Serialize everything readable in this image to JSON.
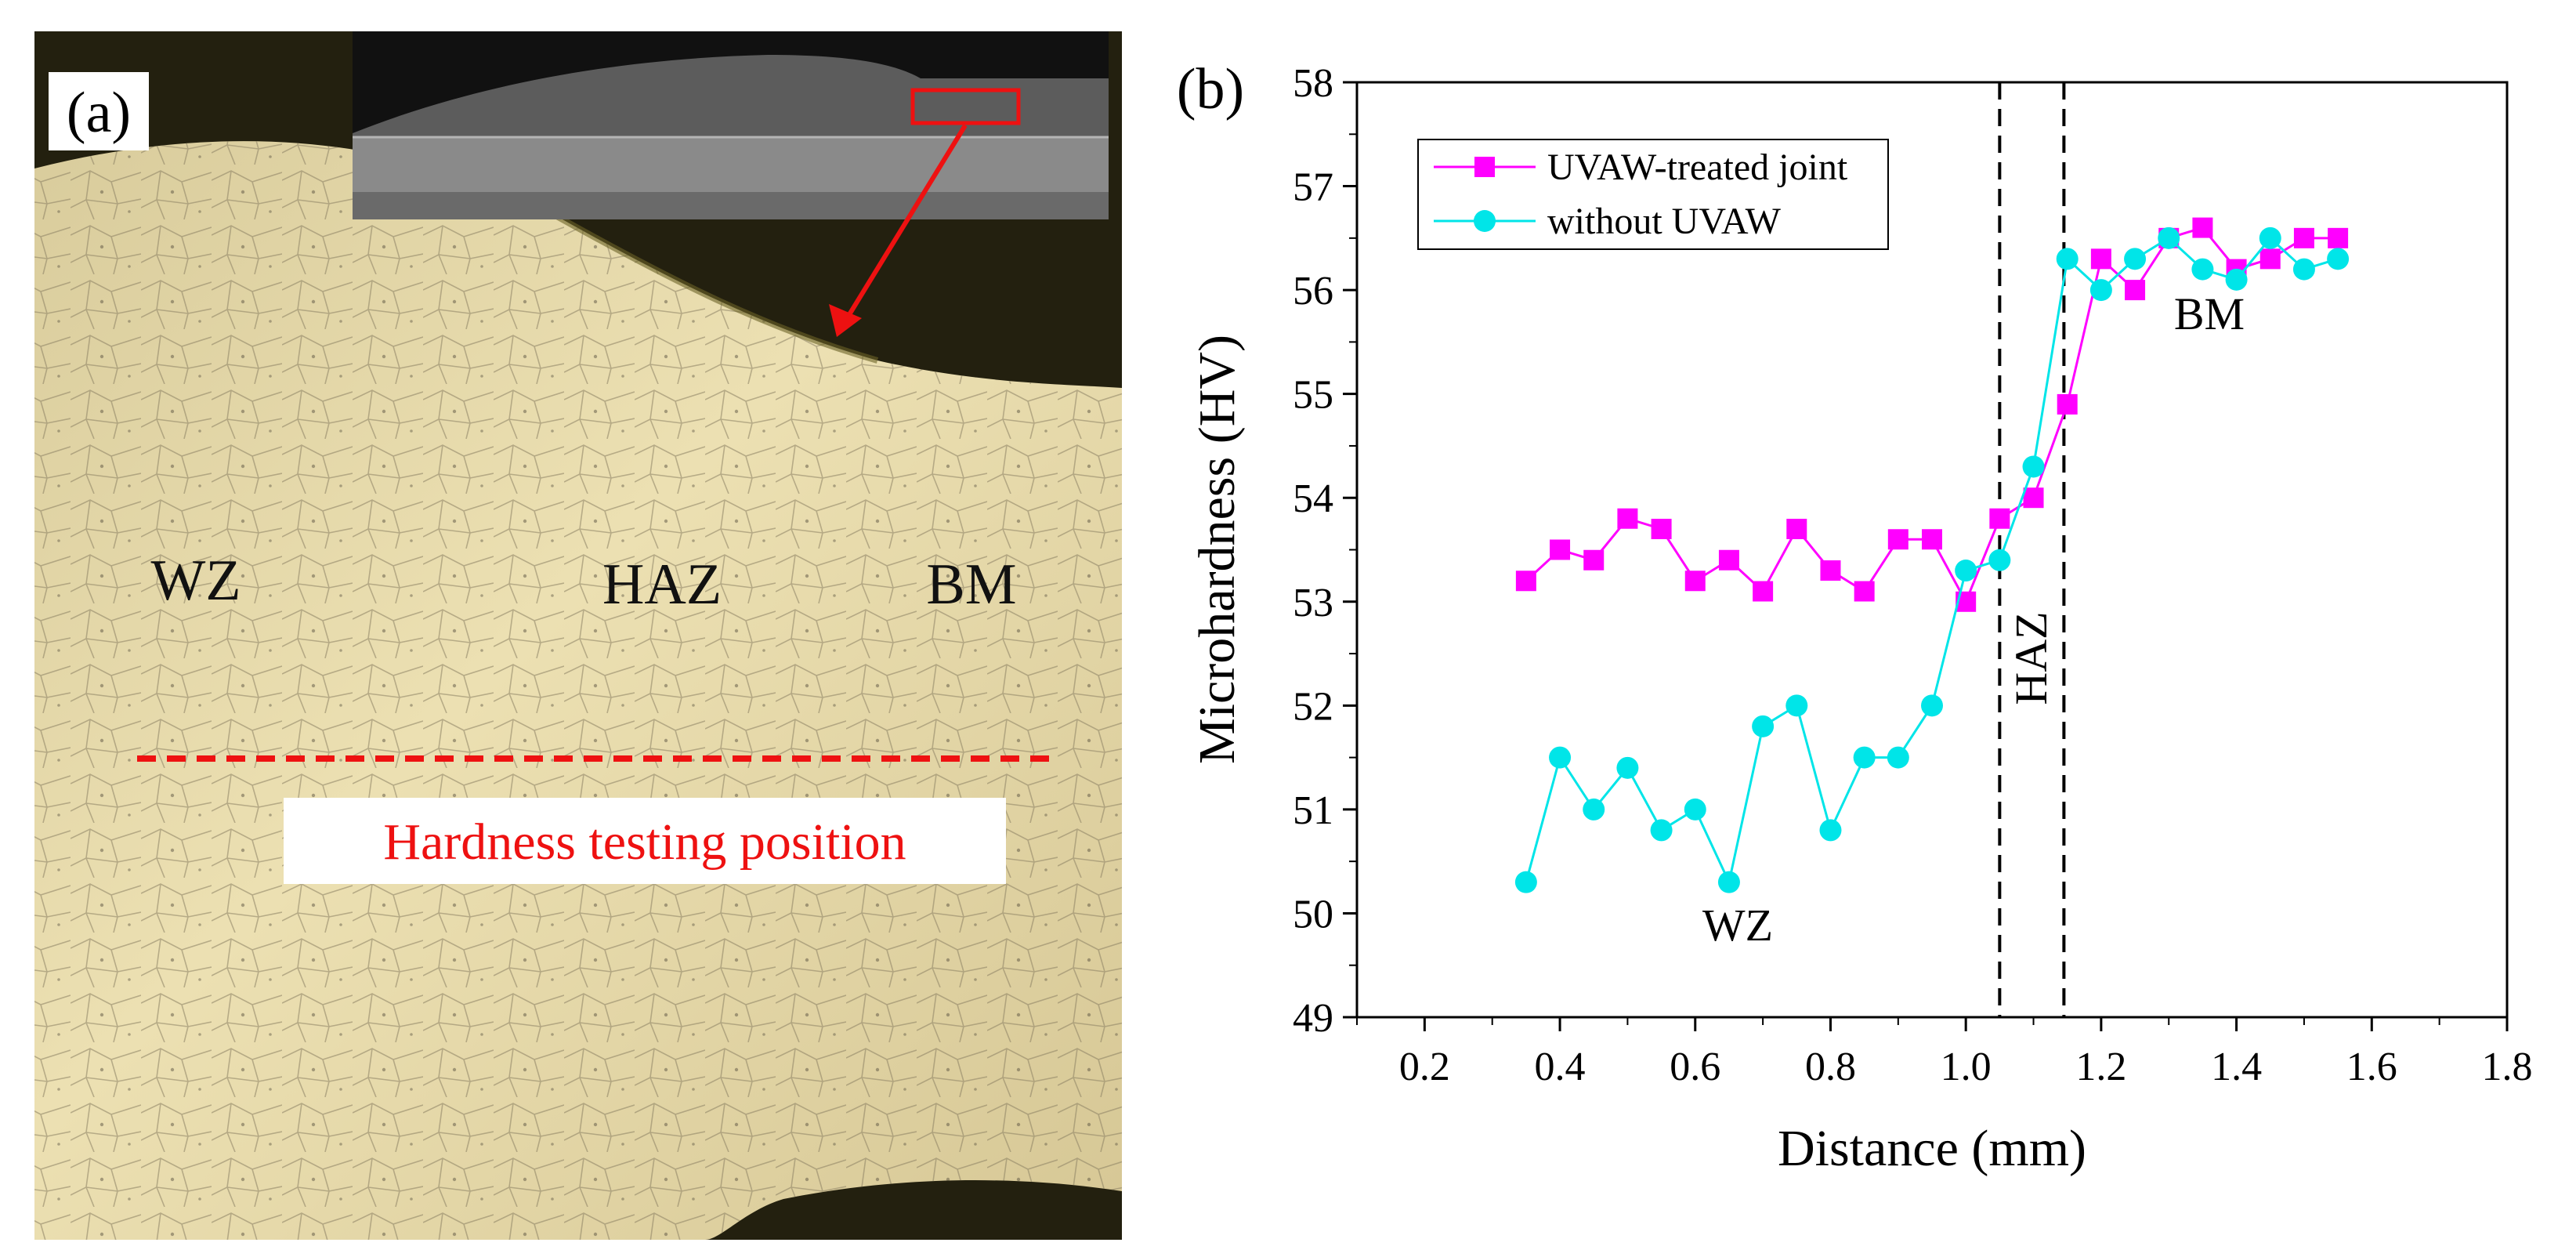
{
  "panel_a": {
    "panel_label": "(a)",
    "zone_labels": [
      "WZ",
      "HAZ",
      "BM"
    ],
    "position_label": "Hardness testing position",
    "colors": {
      "micrograph": "#e3d4a2",
      "background_top": "#23200f",
      "marker": "#ee1111",
      "inset_bg": "#4e4e4e"
    }
  },
  "panel_b": {
    "panel_label": "(b)",
    "region_labels": {
      "wz": "WZ",
      "haz": "HAZ",
      "bm": "BM"
    },
    "dashed_lines_x": [
      1.05,
      1.145
    ]
  },
  "chart_data": {
    "type": "line",
    "title": "",
    "xlabel": "Distance (mm)",
    "ylabel": "Microhardness (HV)",
    "xlim": [
      0.1,
      1.8
    ],
    "ylim": [
      49,
      58
    ],
    "xticks": [
      "0.2",
      "0.4",
      "0.6",
      "0.8",
      "1.0",
      "1.2",
      "1.4",
      "1.6",
      "1.8"
    ],
    "xtick_values": [
      0.2,
      0.4,
      0.6,
      0.8,
      1.0,
      1.2,
      1.4,
      1.6,
      1.8
    ],
    "yticks": [
      "49",
      "50",
      "51",
      "52",
      "53",
      "54",
      "55",
      "56",
      "57",
      "58"
    ],
    "ytick_values": [
      49,
      50,
      51,
      52,
      53,
      54,
      55,
      56,
      57,
      58
    ],
    "x": [
      0.35,
      0.4,
      0.45,
      0.5,
      0.55,
      0.6,
      0.65,
      0.7,
      0.75,
      0.8,
      0.85,
      0.9,
      0.95,
      1.0,
      1.05,
      1.1,
      1.15,
      1.2,
      1.25,
      1.3,
      1.35,
      1.4,
      1.45,
      1.5,
      1.55
    ],
    "series": [
      {
        "name": "UVAW-treated joint",
        "color": "#ff00ff",
        "marker": "square",
        "values": [
          53.2,
          53.5,
          53.4,
          53.8,
          53.7,
          53.2,
          53.4,
          53.1,
          53.7,
          53.3,
          53.1,
          53.6,
          53.6,
          53.0,
          53.8,
          54.0,
          54.9,
          56.3,
          56.0,
          56.5,
          56.6,
          56.2,
          56.3,
          56.5,
          56.5
        ]
      },
      {
        "name": "without UVAW",
        "color": "#00e5e8",
        "marker": "circle",
        "values": [
          50.3,
          51.5,
          51.0,
          51.4,
          50.8,
          51.0,
          50.3,
          51.8,
          52.0,
          50.8,
          51.5,
          51.5,
          52.0,
          53.3,
          53.4,
          54.3,
          56.3,
          56.0,
          56.3,
          56.5,
          56.2,
          56.1,
          56.5,
          56.2,
          56.3
        ]
      }
    ],
    "legend_position": "top-left"
  }
}
